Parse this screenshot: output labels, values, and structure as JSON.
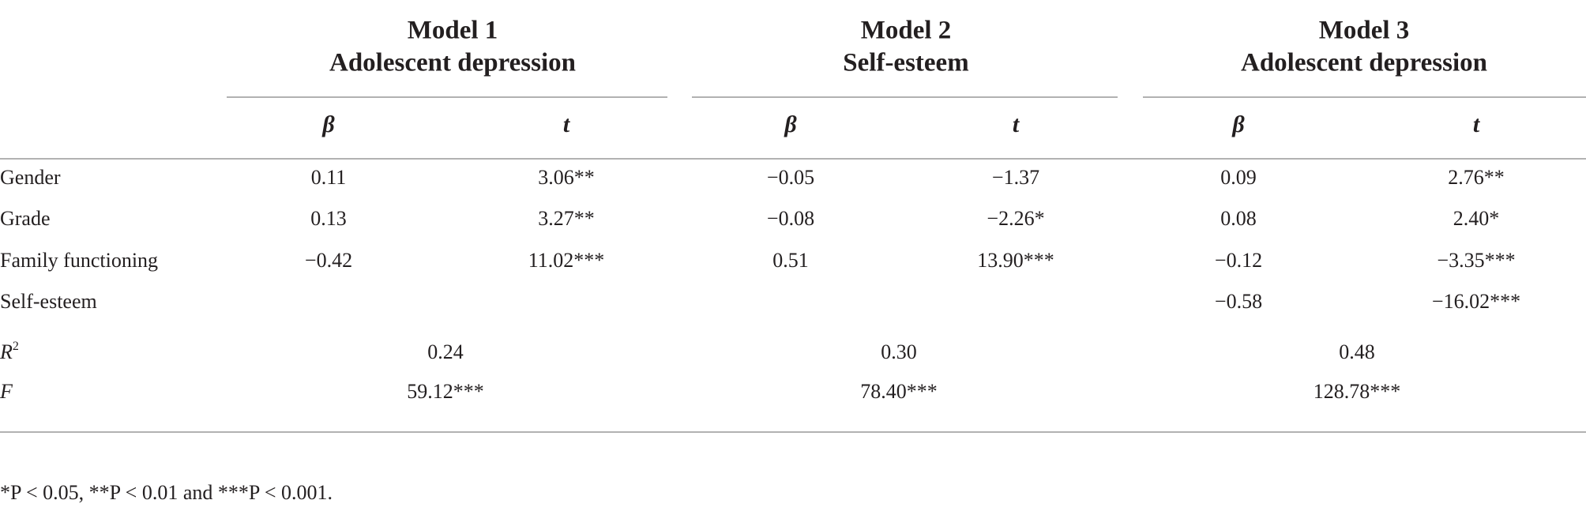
{
  "table": {
    "models": [
      {
        "name": "Model 1",
        "outcome": "Adolescent depression"
      },
      {
        "name": "Model 2",
        "outcome": "Self-esteem"
      },
      {
        "name": "Model 3",
        "outcome": "Adolescent depression"
      }
    ],
    "subheaders": [
      "β",
      "t"
    ],
    "rows": [
      {
        "label": "Gender",
        "cells": [
          "0.11",
          "3.06**",
          "−0.05",
          "−1.37",
          "0.09",
          "2.76**"
        ]
      },
      {
        "label": "Grade",
        "cells": [
          "0.13",
          "3.27**",
          "−0.08",
          "−2.26*",
          "0.08",
          "2.40*"
        ]
      },
      {
        "label": "Family functioning",
        "cells": [
          "−0.42",
          "11.02***",
          "0.51",
          "13.90***",
          "−0.12",
          "−3.35***"
        ]
      },
      {
        "label": "Self-esteem",
        "cells": [
          null,
          null,
          null,
          null,
          "−0.58",
          "−16.02***"
        ]
      }
    ],
    "r2": {
      "label": "R",
      "superscript": "2",
      "values": [
        "0.24",
        "0.30",
        "0.48"
      ]
    },
    "f": {
      "label": "F",
      "values": [
        "59.12***",
        "78.40***",
        "128.78***"
      ]
    }
  },
  "footnote": "*P < 0.05, **P < 0.01 and ***P < 0.001."
}
